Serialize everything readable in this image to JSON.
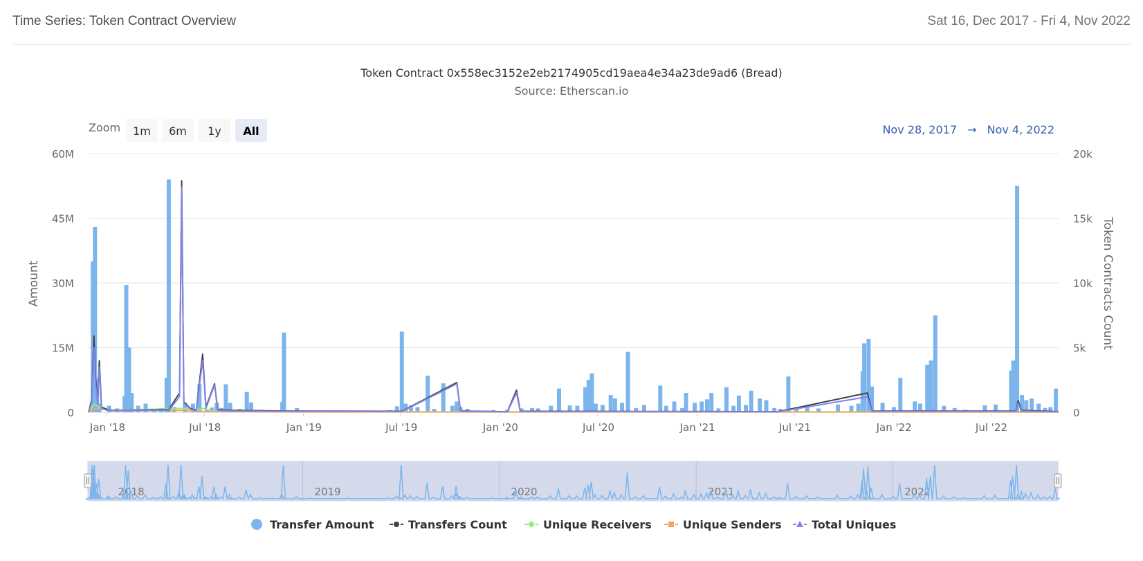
{
  "header": {
    "title": "Time Series: Token Contract Overview",
    "date_range": "Sat 16, Dec 2017 - Fri 4, Nov 2022"
  },
  "chart": {
    "zoom_label": "Zoom",
    "zoom_buttons": [
      "1m",
      "6m",
      "1y",
      "All"
    ],
    "zoom_active": "All",
    "range_from": "Nov 28, 2017",
    "range_arrow": "→",
    "range_to": "Nov 4, 2022"
  },
  "colors": {
    "transfer_amount": "#7cb5ec",
    "transfers_count": "#434348",
    "unique_receivers": "#90ed7d",
    "unique_senders": "#f7a35c",
    "total_uniques": "#8085e9",
    "navigator_mask": "#ccd4e8"
  },
  "chart_data": {
    "type": "bar",
    "title": "Token Contract 0x558ec3152e2eb2174905cd19aea4e34a23de9ad6 (Bread)",
    "subtitle": "Source: Etherscan.io",
    "x_range": [
      "2017-11-28",
      "2022-11-04"
    ],
    "x_ticks": [
      {
        "date": "2018-01-01",
        "label": "Jan '18"
      },
      {
        "date": "2018-07-01",
        "label": "Jul '18"
      },
      {
        "date": "2019-01-01",
        "label": "Jan '19"
      },
      {
        "date": "2019-07-01",
        "label": "Jul '19"
      },
      {
        "date": "2020-01-01",
        "label": "Jan '20"
      },
      {
        "date": "2020-07-01",
        "label": "Jul '20"
      },
      {
        "date": "2021-01-01",
        "label": "Jan '21"
      },
      {
        "date": "2021-07-01",
        "label": "Jul '21"
      },
      {
        "date": "2022-01-01",
        "label": "Jan '22"
      },
      {
        "date": "2022-07-01",
        "label": "Jul '22"
      }
    ],
    "y_left": {
      "label": "Amount",
      "ylim": [
        0,
        60000000
      ],
      "ticks": [
        "0",
        "15M",
        "30M",
        "45M",
        "60M"
      ]
    },
    "y_right": {
      "label": "Token Contracts Count",
      "ylim": [
        0,
        20000
      ],
      "ticks": [
        "0",
        "5k",
        "10k",
        "15k",
        "20k"
      ]
    },
    "grid": true,
    "legend_position": "bottom-center",
    "navigator_years": [
      "2018",
      "2019",
      "2020",
      "2021",
      "2022"
    ],
    "series": [
      {
        "name": "Transfer Amount",
        "type": "column",
        "axis": "left",
        "points": [
          [
            "2017-12-06",
            35000000
          ],
          [
            "2017-12-10",
            43000000
          ],
          [
            "2017-12-14",
            8000000
          ],
          [
            "2017-12-18",
            2000000
          ],
          [
            "2018-01-05",
            1500000
          ],
          [
            "2018-01-20",
            900000
          ],
          [
            "2018-02-03",
            3800000
          ],
          [
            "2018-02-06",
            29500000
          ],
          [
            "2018-02-11",
            15000000
          ],
          [
            "2018-02-16",
            4500000
          ],
          [
            "2018-02-28",
            1500000
          ],
          [
            "2018-03-14",
            2000000
          ],
          [
            "2018-03-30",
            800000
          ],
          [
            "2018-04-12",
            1000000
          ],
          [
            "2018-04-22",
            8000000
          ],
          [
            "2018-04-26",
            54000000
          ],
          [
            "2018-05-06",
            1200000
          ],
          [
            "2018-05-26",
            2200000
          ],
          [
            "2018-06-10",
            2000000
          ],
          [
            "2018-06-22",
            6500000
          ],
          [
            "2018-07-06",
            600000
          ],
          [
            "2018-07-15",
            1100000
          ],
          [
            "2018-07-24",
            2200000
          ],
          [
            "2018-08-02",
            1000000
          ],
          [
            "2018-08-10",
            6500000
          ],
          [
            "2018-08-18",
            2200000
          ],
          [
            "2018-09-05",
            800000
          ],
          [
            "2018-09-18",
            4700000
          ],
          [
            "2018-09-26",
            2300000
          ],
          [
            "2018-10-15",
            600000
          ],
          [
            "2018-11-05",
            400000
          ],
          [
            "2018-11-23",
            2400000
          ],
          [
            "2018-11-26",
            18500000
          ],
          [
            "2018-12-20",
            1000000
          ],
          [
            "2019-01-15",
            300000
          ],
          [
            "2019-02-20",
            200000
          ],
          [
            "2019-03-25",
            400000
          ],
          [
            "2019-05-01",
            200000
          ],
          [
            "2019-06-10",
            500000
          ],
          [
            "2019-06-24",
            1400000
          ],
          [
            "2019-07-03",
            18700000
          ],
          [
            "2019-07-10",
            2000000
          ],
          [
            "2019-07-20",
            1600000
          ],
          [
            "2019-08-01",
            1200000
          ],
          [
            "2019-08-20",
            8500000
          ],
          [
            "2019-09-01",
            800000
          ],
          [
            "2019-09-18",
            6700000
          ],
          [
            "2019-10-05",
            1500000
          ],
          [
            "2019-10-13",
            2500000
          ],
          [
            "2019-10-20",
            1200000
          ],
          [
            "2019-11-02",
            800000
          ],
          [
            "2019-12-20",
            500000
          ],
          [
            "2020-01-15",
            600000
          ],
          [
            "2020-02-10",
            900000
          ],
          [
            "2020-03-01",
            1000000
          ],
          [
            "2020-03-12",
            900000
          ],
          [
            "2020-04-05",
            1500000
          ],
          [
            "2020-04-20",
            5500000
          ],
          [
            "2020-05-10",
            1600000
          ],
          [
            "2020-05-24",
            1500000
          ],
          [
            "2020-06-08",
            5800000
          ],
          [
            "2020-06-14",
            7500000
          ],
          [
            "2020-06-20",
            9000000
          ],
          [
            "2020-06-27",
            2000000
          ],
          [
            "2020-07-10",
            1700000
          ],
          [
            "2020-07-25",
            4000000
          ],
          [
            "2020-08-02",
            3200000
          ],
          [
            "2020-08-15",
            2200000
          ],
          [
            "2020-08-26",
            14000000
          ],
          [
            "2020-09-10",
            1000000
          ],
          [
            "2020-09-25",
            1700000
          ],
          [
            "2020-10-25",
            6200000
          ],
          [
            "2020-11-05",
            1500000
          ],
          [
            "2020-11-20",
            2500000
          ],
          [
            "2020-12-05",
            1000000
          ],
          [
            "2020-12-12",
            4500000
          ],
          [
            "2020-12-28",
            2200000
          ],
          [
            "2021-01-10",
            2500000
          ],
          [
            "2021-01-20",
            3000000
          ],
          [
            "2021-01-28",
            4500000
          ],
          [
            "2021-02-10",
            900000
          ],
          [
            "2021-02-25",
            5800000
          ],
          [
            "2021-03-10",
            1500000
          ],
          [
            "2021-03-20",
            3900000
          ],
          [
            "2021-04-02",
            1700000
          ],
          [
            "2021-04-12",
            5000000
          ],
          [
            "2021-04-28",
            3200000
          ],
          [
            "2021-05-10",
            2800000
          ],
          [
            "2021-05-25",
            1000000
          ],
          [
            "2021-06-05",
            800000
          ],
          [
            "2021-06-20",
            8300000
          ],
          [
            "2021-07-05",
            1200000
          ],
          [
            "2021-07-25",
            1500000
          ],
          [
            "2021-08-15",
            900000
          ],
          [
            "2021-09-20",
            1800000
          ],
          [
            "2021-10-15",
            1500000
          ],
          [
            "2021-10-28",
            2000000
          ],
          [
            "2021-11-05",
            9500000
          ],
          [
            "2021-11-08",
            16000000
          ],
          [
            "2021-11-16",
            17000000
          ],
          [
            "2021-11-22",
            6000000
          ],
          [
            "2021-12-12",
            2200000
          ],
          [
            "2022-01-02",
            1200000
          ],
          [
            "2022-01-14",
            8000000
          ],
          [
            "2022-02-10",
            2500000
          ],
          [
            "2022-02-20",
            2000000
          ],
          [
            "2022-03-05",
            11000000
          ],
          [
            "2022-03-12",
            12000000
          ],
          [
            "2022-03-20",
            22500000
          ],
          [
            "2022-04-05",
            1500000
          ],
          [
            "2022-04-25",
            1000000
          ],
          [
            "2022-05-15",
            600000
          ],
          [
            "2022-06-20",
            1600000
          ],
          [
            "2022-07-10",
            1800000
          ],
          [
            "2022-08-08",
            9700000
          ],
          [
            "2022-08-12",
            12000000
          ],
          [
            "2022-08-19",
            52500000
          ],
          [
            "2022-08-28",
            4000000
          ],
          [
            "2022-09-05",
            2800000
          ],
          [
            "2022-09-15",
            3200000
          ],
          [
            "2022-09-28",
            2000000
          ],
          [
            "2022-10-10",
            1000000
          ],
          [
            "2022-10-20",
            1200000
          ],
          [
            "2022-10-30",
            5500000
          ]
        ]
      },
      {
        "name": "Transfers Count",
        "type": "line",
        "axis": "right",
        "points": [
          [
            "2017-11-28",
            0
          ],
          [
            "2017-12-04",
            1000
          ],
          [
            "2017-12-08",
            5900
          ],
          [
            "2017-12-11",
            2600
          ],
          [
            "2017-12-15",
            800
          ],
          [
            "2017-12-18",
            4000
          ],
          [
            "2017-12-22",
            400
          ],
          [
            "2018-01-05",
            150
          ],
          [
            "2018-02-06",
            150
          ],
          [
            "2018-04-26",
            200
          ],
          [
            "2018-05-16",
            1500
          ],
          [
            "2018-05-20",
            17900
          ],
          [
            "2018-05-24",
            800
          ],
          [
            "2018-06-05",
            300
          ],
          [
            "2018-06-16",
            150
          ],
          [
            "2018-06-28",
            4500
          ],
          [
            "2018-07-04",
            400
          ],
          [
            "2018-07-20",
            2200
          ],
          [
            "2018-07-26",
            200
          ],
          [
            "2018-08-20",
            150
          ],
          [
            "2018-11-26",
            100
          ],
          [
            "2019-07-03",
            80
          ],
          [
            "2019-10-13",
            2300
          ],
          [
            "2019-10-20",
            100
          ],
          [
            "2020-01-15",
            50
          ],
          [
            "2020-02-01",
            1700
          ],
          [
            "2020-02-08",
            80
          ],
          [
            "2021-06-01",
            50
          ],
          [
            "2021-11-14",
            1500
          ],
          [
            "2021-11-22",
            100
          ],
          [
            "2022-08-17",
            100
          ],
          [
            "2022-08-21",
            900
          ],
          [
            "2022-08-27",
            150
          ],
          [
            "2022-11-04",
            50
          ]
        ]
      },
      {
        "name": "Unique Receivers",
        "type": "line",
        "axis": "right",
        "points": [
          [
            "2017-11-28",
            0
          ],
          [
            "2017-12-08",
            600
          ],
          [
            "2017-12-18",
            400
          ],
          [
            "2018-01-10",
            150
          ],
          [
            "2018-05-20",
            300
          ],
          [
            "2018-06-20",
            200
          ],
          [
            "2018-06-28",
            300
          ],
          [
            "2018-07-15",
            100
          ],
          [
            "2019-01-01",
            30
          ],
          [
            "2020-01-01",
            30
          ],
          [
            "2021-01-01",
            30
          ],
          [
            "2022-01-01",
            30
          ],
          [
            "2022-11-04",
            20
          ]
        ]
      },
      {
        "name": "Unique Senders",
        "type": "line",
        "axis": "right",
        "points": [
          [
            "2017-11-28",
            0
          ],
          [
            "2017-12-08",
            300
          ],
          [
            "2017-12-20",
            250
          ],
          [
            "2018-01-15",
            100
          ],
          [
            "2018-05-20",
            150
          ],
          [
            "2018-07-01",
            60
          ],
          [
            "2019-01-01",
            20
          ],
          [
            "2021-01-01",
            20
          ],
          [
            "2022-11-04",
            10
          ]
        ]
      },
      {
        "name": "Total Uniques",
        "type": "line",
        "axis": "right",
        "points": [
          [
            "2017-11-28",
            0
          ],
          [
            "2017-12-04",
            800
          ],
          [
            "2017-12-08",
            5000
          ],
          [
            "2017-12-11",
            2200
          ],
          [
            "2017-12-15",
            600
          ],
          [
            "2017-12-18",
            3500
          ],
          [
            "2017-12-22",
            300
          ],
          [
            "2018-01-05",
            120
          ],
          [
            "2018-04-26",
            150
          ],
          [
            "2018-05-16",
            1200
          ],
          [
            "2018-05-20",
            17400
          ],
          [
            "2018-05-24",
            700
          ],
          [
            "2018-06-05",
            250
          ],
          [
            "2018-06-16",
            100
          ],
          [
            "2018-06-28",
            4000
          ],
          [
            "2018-07-04",
            300
          ],
          [
            "2018-07-20",
            2100
          ],
          [
            "2018-07-26",
            150
          ],
          [
            "2018-08-20",
            100
          ],
          [
            "2018-11-26",
            80
          ],
          [
            "2019-07-03",
            60
          ],
          [
            "2019-10-13",
            2200
          ],
          [
            "2019-10-20",
            80
          ],
          [
            "2020-01-15",
            40
          ],
          [
            "2020-02-01",
            1500
          ],
          [
            "2020-02-08",
            60
          ],
          [
            "2021-06-01",
            40
          ],
          [
            "2021-11-14",
            1200
          ],
          [
            "2021-11-22",
            80
          ],
          [
            "2022-08-17",
            80
          ],
          [
            "2022-08-21",
            700
          ],
          [
            "2022-08-27",
            100
          ],
          [
            "2022-11-04",
            40
          ]
        ]
      }
    ]
  }
}
